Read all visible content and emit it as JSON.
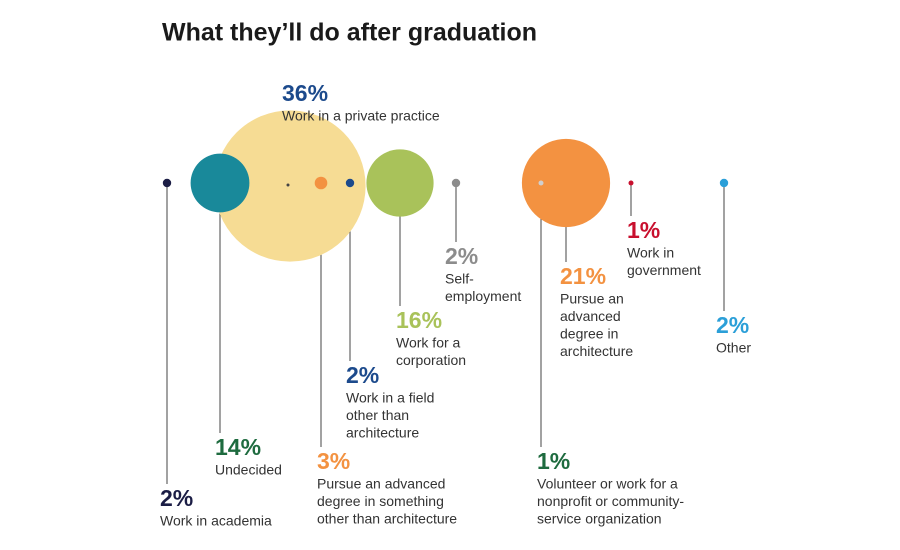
{
  "chart_data": {
    "type": "bubble",
    "title": "What they’ll do after graduation",
    "categories": [
      [
        "Work in academia"
      ],
      [
        "Undecided"
      ],
      [
        "Work in a private practice"
      ],
      [
        "Pursue an advanced",
        "degree in something",
        "other than architecture"
      ],
      [
        "Work in a field",
        "other than",
        "architecture"
      ],
      [
        "Work for a",
        "corporation"
      ],
      [
        "Self-",
        "employment"
      ],
      [
        "Volunteer or work for a",
        "nonprofit or community-",
        "service organization"
      ],
      [
        "Pursue an",
        "advanced",
        "degree in",
        "architecture"
      ],
      [
        "Work in",
        "government"
      ],
      [
        "Other"
      ]
    ],
    "values": [
      2,
      14,
      36,
      3,
      2,
      16,
      2,
      1,
      21,
      1,
      2
    ],
    "value_labels": [
      "2%",
      "14%",
      "36%",
      "3%",
      "2%",
      "16%",
      "2%",
      "1%",
      "21%",
      "1%",
      "2%"
    ],
    "colors": [
      "#1b1d45",
      "#19899a",
      "#f6dc94",
      "#f39241",
      "#1c4a8c",
      "#a9c25a",
      "#8c8c8c",
      "#cfcfcf",
      "#f39241",
      "#c8102e",
      "#2b9fd8"
    ],
    "label_colors": [
      "#1b1d45",
      "#1e6b3f",
      "#1c4a8c",
      "#f39241",
      "#1c4a8c",
      "#a9c25a",
      "#8c8c8c",
      "#1e6b3f",
      "#f39241",
      "#c8102e",
      "#2b9fd8"
    ]
  }
}
